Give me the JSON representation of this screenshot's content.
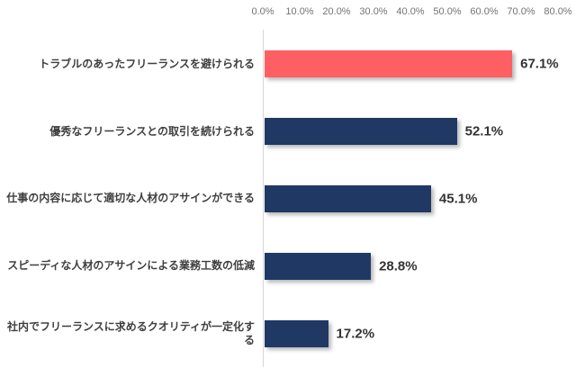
{
  "chart_data": {
    "type": "bar",
    "orientation": "horizontal",
    "title": "",
    "xlabel": "",
    "ylabel": "",
    "axis_position": "top",
    "grid": false,
    "xlim": [
      0,
      80
    ],
    "x_ticks": [
      "0.0%",
      "10.0%",
      "20.0%",
      "30.0%",
      "40.0%",
      "50.0%",
      "60.0%",
      "70.0%",
      "80.0%"
    ],
    "categories": [
      "トラブルのあったフリーランスを避けられる",
      "優秀なフリーランスとの取引を続けられる",
      "仕事の内容に応じて適切な人材のアサインができる",
      "スピーディな人材のアサインによる業務工数の低減",
      "社内でフリーランスに求めるクオリティが一定化する"
    ],
    "values": [
      67.1,
      52.1,
      45.1,
      28.8,
      17.2
    ],
    "value_labels": [
      "67.1%",
      "52.1%",
      "45.1%",
      "28.8%",
      "17.2%"
    ],
    "bar_colors": [
      "#FD5F62",
      "#1F3864",
      "#1F3864",
      "#1F3864",
      "#1F3864"
    ]
  },
  "colors": {
    "highlight_bar": "#FD5F62",
    "default_bar": "#1F3864",
    "axis_line": "#D6D6D6",
    "tick_label": "#737373",
    "category_label": "#3F3F3F",
    "value_label": "#333333",
    "background": "#FFFFFF"
  }
}
